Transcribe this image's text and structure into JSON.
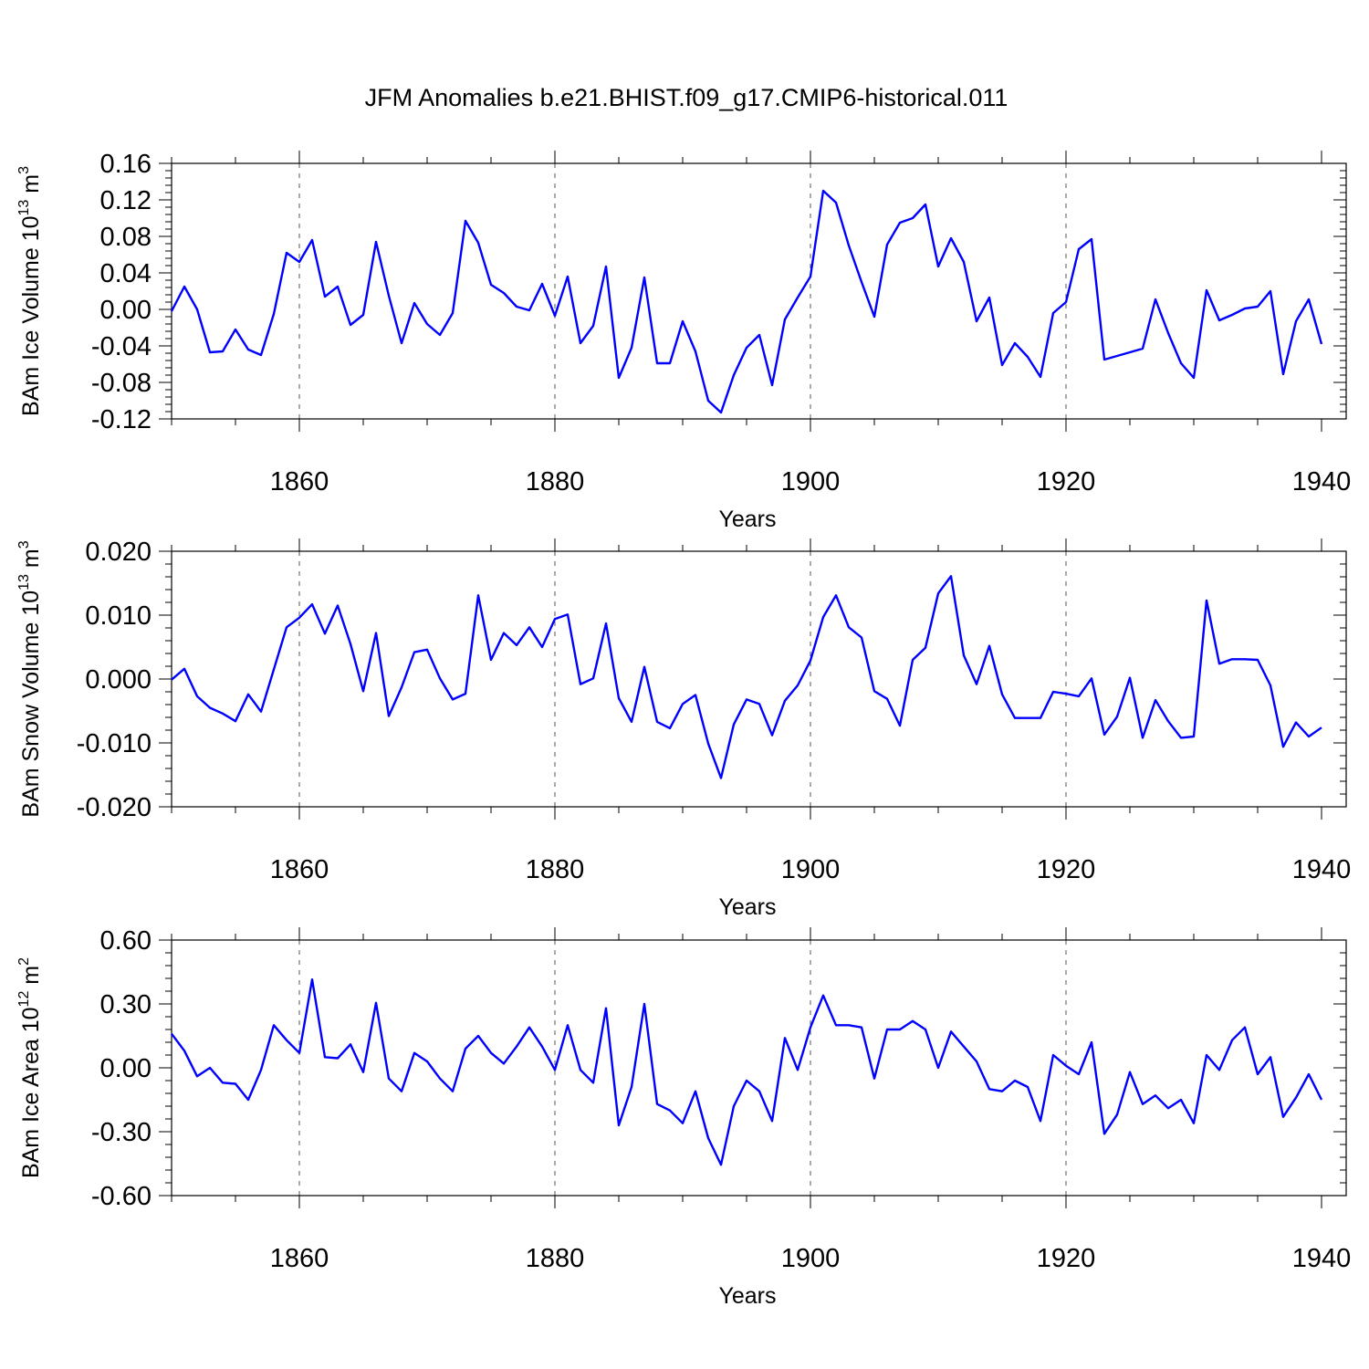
{
  "title": "JFM Anomalies b.e21.BHIST.f09_g17.CMIP6-historical.011",
  "line_color": "#0000ff",
  "chart_data": [
    {
      "type": "line",
      "ylabel_main": "BAm Ice Volume 10",
      "ylabel_exp": "13",
      "ylabel_unit": " m",
      "ylabel_unit_exp": "3",
      "xlabel": "Years",
      "xlim": [
        1850,
        1940
      ],
      "ylim": [
        -0.12,
        0.16
      ],
      "xticks": [
        1860,
        1880,
        1900,
        1920,
        1940
      ],
      "xtick_labels": [
        "1860",
        "1880",
        "1900",
        "1920",
        "1940"
      ],
      "yticks": [
        -0.12,
        -0.08,
        -0.04,
        0.0,
        0.04,
        0.08,
        0.12,
        0.16
      ],
      "ytick_labels": [
        "-0.12",
        "-0.08",
        "-0.04",
        "0.00",
        "0.04",
        "0.08",
        "0.12",
        "0.16"
      ],
      "ydecimals": 2,
      "grid": "vertical dashed at labeled years",
      "x": [
        1850,
        1851,
        1852,
        1853,
        1854,
        1855,
        1856,
        1857,
        1858,
        1859,
        1860,
        1861,
        1862,
        1863,
        1864,
        1865,
        1866,
        1867,
        1868,
        1869,
        1870,
        1871,
        1872,
        1873,
        1874,
        1875,
        1876,
        1877,
        1878,
        1879,
        1880,
        1881,
        1882,
        1883,
        1884,
        1885,
        1886,
        1887,
        1888,
        1889,
        1890,
        1891,
        1892,
        1893,
        1894,
        1895,
        1896,
        1897,
        1898,
        1899,
        1900,
        1901,
        1902,
        1903,
        1904,
        1905,
        1906,
        1907,
        1908,
        1909,
        1910,
        1911,
        1912,
        1913,
        1914,
        1915,
        1916,
        1917,
        1918,
        1919,
        1920,
        1921,
        1922,
        1923,
        1924,
        1925,
        1926,
        1927,
        1928,
        1929,
        1930,
        1931,
        1932,
        1933,
        1934,
        1935,
        1936,
        1937,
        1938,
        1939,
        1940
      ],
      "values": [
        -0.002,
        0.025,
        0.0,
        -0.047,
        -0.046,
        -0.022,
        -0.044,
        -0.05,
        -0.005,
        0.062,
        0.052,
        0.076,
        0.014,
        0.025,
        -0.017,
        -0.006,
        0.074,
        0.015,
        -0.037,
        0.007,
        -0.016,
        -0.028,
        -0.004,
        0.097,
        0.073,
        0.027,
        0.018,
        0.003,
        -0.001,
        0.028,
        -0.007,
        0.036,
        -0.037,
        -0.018,
        0.047,
        -0.075,
        -0.042,
        0.035,
        -0.059,
        -0.059,
        -0.013,
        -0.046,
        -0.1,
        -0.113,
        -0.072,
        -0.042,
        -0.028,
        -0.083,
        -0.011,
        0.013,
        0.036,
        0.13,
        0.117,
        0.07,
        0.03,
        -0.008,
        0.071,
        0.095,
        0.1,
        0.115,
        0.047,
        0.078,
        0.052,
        -0.013,
        0.013,
        -0.061,
        -0.037,
        -0.052,
        -0.074,
        -0.004,
        0.008,
        0.066,
        0.077,
        -0.055,
        -0.051,
        -0.047,
        -0.043,
        0.011,
        -0.026,
        -0.059,
        -0.075,
        0.021,
        -0.012,
        -0.006,
        0.001,
        0.003,
        0.02,
        -0.071,
        -0.013,
        0.011,
        -0.038
      ]
    },
    {
      "type": "line",
      "ylabel_main": "BAm Snow Volume 10",
      "ylabel_exp": "13",
      "ylabel_unit": " m",
      "ylabel_unit_exp": "3",
      "xlabel": "Years",
      "xlim": [
        1850,
        1940
      ],
      "ylim": [
        -0.02,
        0.02
      ],
      "xticks": [
        1860,
        1880,
        1900,
        1920,
        1940
      ],
      "xtick_labels": [
        "1860",
        "1880",
        "1900",
        "1920",
        "1940"
      ],
      "yticks": [
        -0.02,
        -0.01,
        0.0,
        0.01,
        0.02
      ],
      "ytick_labels": [
        "-0.020",
        "-0.010",
        "0.000",
        "0.010",
        "0.020"
      ],
      "ydecimals": 3,
      "grid": "vertical dashed at labeled years",
      "x": [
        1850,
        1851,
        1852,
        1853,
        1854,
        1855,
        1856,
        1857,
        1858,
        1859,
        1860,
        1861,
        1862,
        1863,
        1864,
        1865,
        1866,
        1867,
        1868,
        1869,
        1870,
        1871,
        1872,
        1873,
        1874,
        1875,
        1876,
        1877,
        1878,
        1879,
        1880,
        1881,
        1882,
        1883,
        1884,
        1885,
        1886,
        1887,
        1888,
        1889,
        1890,
        1891,
        1892,
        1893,
        1894,
        1895,
        1896,
        1897,
        1898,
        1899,
        1900,
        1901,
        1902,
        1903,
        1904,
        1905,
        1906,
        1907,
        1908,
        1909,
        1910,
        1911,
        1912,
        1913,
        1914,
        1915,
        1916,
        1917,
        1918,
        1919,
        1920,
        1921,
        1922,
        1923,
        1924,
        1925,
        1926,
        1927,
        1928,
        1929,
        1930,
        1931,
        1932,
        1933,
        1934,
        1935,
        1936,
        1937,
        1938,
        1939,
        1940
      ],
      "values": [
        -0.0001,
        0.0016,
        -0.0027,
        -0.0045,
        -0.0054,
        -0.0066,
        -0.0024,
        -0.0051,
        0.0015,
        0.0081,
        0.0096,
        0.0117,
        0.0071,
        0.0115,
        0.0055,
        -0.0019,
        0.0072,
        -0.0058,
        -0.0013,
        0.0042,
        0.0046,
        0.0001,
        -0.0032,
        -0.0023,
        0.0131,
        0.003,
        0.0072,
        0.0053,
        0.0081,
        0.005,
        0.0094,
        0.0101,
        -0.0008,
        0.0001,
        0.0087,
        -0.003,
        -0.0067,
        0.0019,
        -0.0067,
        -0.0077,
        -0.0039,
        -0.0025,
        -0.0101,
        -0.0155,
        -0.0071,
        -0.0032,
        -0.0039,
        -0.0088,
        -0.0034,
        -0.001,
        0.0029,
        0.0097,
        0.0131,
        0.0081,
        0.0065,
        -0.0019,
        -0.0031,
        -0.0073,
        0.003,
        0.0049,
        0.0134,
        0.0161,
        0.0037,
        -0.0008,
        0.0052,
        -0.0024,
        -0.0061,
        -0.0061,
        -0.0061,
        -0.002,
        -0.0023,
        -0.0027,
        0.0001,
        -0.0087,
        -0.0059,
        0.0002,
        -0.0092,
        -0.0033,
        -0.0066,
        -0.0092,
        -0.009,
        0.0123,
        0.0024,
        0.0031,
        0.0031,
        0.003,
        -0.001,
        -0.0106,
        -0.0068,
        -0.009,
        -0.0076
      ]
    },
    {
      "type": "line",
      "ylabel_main": "BAm Ice Area 10",
      "ylabel_exp": "12",
      "ylabel_unit": " m",
      "ylabel_unit_exp": "2",
      "xlabel": "Years",
      "xlim": [
        1850,
        1940
      ],
      "ylim": [
        -0.6,
        0.6
      ],
      "xticks": [
        1860,
        1880,
        1900,
        1920,
        1940
      ],
      "xtick_labels": [
        "1860",
        "1880",
        "1900",
        "1920",
        "1940"
      ],
      "yticks": [
        -0.6,
        -0.3,
        0.0,
        0.3,
        0.6
      ],
      "ytick_labels": [
        "-0.60",
        "-0.30",
        "0.00",
        "0.30",
        "0.60"
      ],
      "ydecimals": 2,
      "grid": "vertical dashed at labeled years",
      "x": [
        1850,
        1851,
        1852,
        1853,
        1854,
        1855,
        1856,
        1857,
        1858,
        1859,
        1860,
        1861,
        1862,
        1863,
        1864,
        1865,
        1866,
        1867,
        1868,
        1869,
        1870,
        1871,
        1872,
        1873,
        1874,
        1875,
        1876,
        1877,
        1878,
        1879,
        1880,
        1881,
        1882,
        1883,
        1884,
        1885,
        1886,
        1887,
        1888,
        1889,
        1890,
        1891,
        1892,
        1893,
        1894,
        1895,
        1896,
        1897,
        1898,
        1899,
        1900,
        1901,
        1902,
        1903,
        1904,
        1905,
        1906,
        1907,
        1908,
        1909,
        1910,
        1911,
        1912,
        1913,
        1914,
        1915,
        1916,
        1917,
        1918,
        1919,
        1920,
        1921,
        1922,
        1923,
        1924,
        1925,
        1926,
        1927,
        1928,
        1929,
        1930,
        1931,
        1932,
        1933,
        1934,
        1935,
        1936,
        1937,
        1938,
        1939,
        1940
      ],
      "values": [
        0.16,
        0.08,
        -0.04,
        0.0,
        -0.07,
        -0.075,
        -0.15,
        -0.01,
        0.2,
        0.13,
        0.07,
        0.415,
        0.05,
        0.045,
        0.11,
        -0.02,
        0.305,
        -0.05,
        -0.11,
        0.07,
        0.03,
        -0.05,
        -0.11,
        0.09,
        0.15,
        0.07,
        0.02,
        0.1,
        0.19,
        0.1,
        -0.01,
        0.2,
        -0.01,
        -0.07,
        0.28,
        -0.27,
        -0.09,
        0.3,
        -0.17,
        -0.2,
        -0.26,
        -0.11,
        -0.33,
        -0.455,
        -0.18,
        -0.06,
        -0.11,
        -0.25,
        0.14,
        -0.01,
        0.19,
        0.34,
        0.2,
        0.2,
        0.19,
        -0.05,
        0.18,
        0.18,
        0.22,
        0.18,
        0.0,
        0.17,
        0.1,
        0.03,
        -0.1,
        -0.11,
        -0.06,
        -0.09,
        -0.25,
        0.06,
        0.01,
        -0.03,
        0.12,
        -0.31,
        -0.22,
        -0.02,
        -0.17,
        -0.13,
        -0.19,
        -0.15,
        -0.26,
        0.06,
        -0.01,
        0.13,
        0.19,
        -0.03,
        0.05,
        -0.23,
        -0.14,
        -0.03,
        -0.15
      ]
    }
  ]
}
